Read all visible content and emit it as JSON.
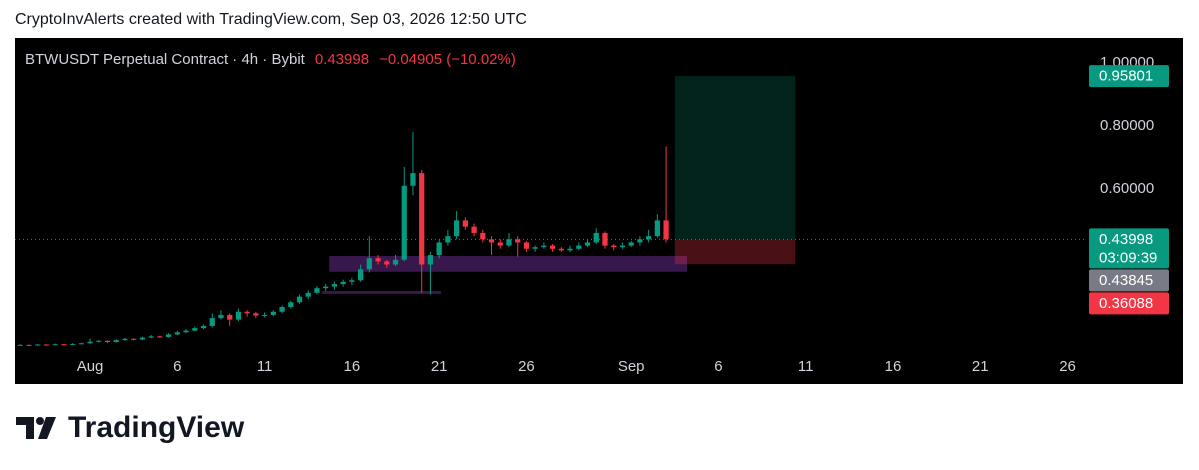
{
  "header": "CryptoInvAlerts created with TradingView.com, Sep 03, 2026 12:50 UTC",
  "brand": "TradingView",
  "chart_data": {
    "type": "candlestick",
    "title": "BTWUSDT Perpetual Contract · 4h · Bybit",
    "last_price": {
      "value": 0.43998,
      "label": "0.43998"
    },
    "change": "−0.04905 (−10.02%)",
    "countdown": "03:09:39",
    "up_color": "#089981",
    "down_color": "#f23645",
    "grid": false,
    "xlim": [
      -4.3,
      57
    ],
    "ylim": [
      0.095,
      1.079
    ],
    "xticks": [
      {
        "value": 0,
        "label": "Aug"
      },
      {
        "value": 5,
        "label": "6"
      },
      {
        "value": 10,
        "label": "11"
      },
      {
        "value": 15,
        "label": "16"
      },
      {
        "value": 20,
        "label": "21"
      },
      {
        "value": 25,
        "label": "26"
      },
      {
        "value": 31,
        "label": "Sep"
      },
      {
        "value": 36,
        "label": "6"
      },
      {
        "value": 41,
        "label": "11"
      },
      {
        "value": 46,
        "label": "16"
      },
      {
        "value": 51,
        "label": "21"
      },
      {
        "value": 56,
        "label": "26"
      }
    ],
    "yticks": [
      {
        "value": 1,
        "label": "1.00000"
      },
      {
        "value": 0.8,
        "label": "0.80000"
      },
      {
        "value": 0.6,
        "label": "0.60000"
      }
    ],
    "x": [
      -4,
      -3.5,
      -3,
      -2.5,
      -2,
      -1.5,
      -1,
      -0.5,
      0,
      0.5,
      1,
      1.5,
      2,
      2.5,
      3,
      3.5,
      4,
      4.5,
      5,
      5.5,
      6,
      6.5,
      7,
      7.5,
      8,
      8.5,
      9,
      9.5,
      10,
      10.5,
      11,
      11.5,
      12,
      12.5,
      13,
      13.5,
      14,
      14.5,
      15,
      15.5,
      16,
      16.5,
      17,
      17.5,
      18,
      18.5,
      19,
      19.5,
      20,
      20.5,
      21,
      21.5,
      22,
      22.5,
      23,
      23.5,
      24,
      24.5,
      25,
      25.5,
      26,
      26.5,
      27,
      27.5,
      28,
      28.5,
      29,
      29.5,
      30,
      30.5,
      31,
      31.5,
      32,
      32.5,
      33
    ],
    "open": [
      0.104,
      0.105,
      0.104,
      0.106,
      0.105,
      0.107,
      0.106,
      0.108,
      0.11,
      0.115,
      0.118,
      0.114,
      0.12,
      0.124,
      0.122,
      0.128,
      0.132,
      0.13,
      0.138,
      0.145,
      0.15,
      0.158,
      0.165,
      0.19,
      0.2,
      0.185,
      0.21,
      0.205,
      0.198,
      0.2,
      0.21,
      0.225,
      0.24,
      0.258,
      0.27,
      0.285,
      0.29,
      0.298,
      0.305,
      0.31,
      0.345,
      0.38,
      0.37,
      0.36,
      0.375,
      0.61,
      0.65,
      0.36,
      0.39,
      0.43,
      0.45,
      0.5,
      0.48,
      0.46,
      0.44,
      0.43,
      0.42,
      0.44,
      0.43,
      0.41,
      0.415,
      0.42,
      0.41,
      0.405,
      0.41,
      0.42,
      0.43,
      0.46,
      0.42,
      0.415,
      0.42,
      0.43,
      0.44,
      0.45,
      0.5
    ],
    "high": [
      0.107,
      0.106,
      0.108,
      0.107,
      0.109,
      0.108,
      0.11,
      0.112,
      0.125,
      0.12,
      0.119,
      0.123,
      0.128,
      0.126,
      0.131,
      0.136,
      0.134,
      0.142,
      0.15,
      0.155,
      0.163,
      0.17,
      0.205,
      0.215,
      0.205,
      0.22,
      0.215,
      0.21,
      0.208,
      0.215,
      0.23,
      0.245,
      0.265,
      0.278,
      0.292,
      0.298,
      0.305,
      0.312,
      0.318,
      0.36,
      0.45,
      0.39,
      0.375,
      0.39,
      0.67,
      0.78,
      0.66,
      0.4,
      0.44,
      0.47,
      0.53,
      0.51,
      0.49,
      0.47,
      0.45,
      0.44,
      0.46,
      0.45,
      0.435,
      0.42,
      0.43,
      0.425,
      0.415,
      0.42,
      0.43,
      0.44,
      0.475,
      0.465,
      0.425,
      0.43,
      0.435,
      0.45,
      0.47,
      0.52,
      0.735
    ],
    "low": [
      0.102,
      0.102,
      0.103,
      0.103,
      0.104,
      0.104,
      0.105,
      0.106,
      0.108,
      0.112,
      0.11,
      0.112,
      0.118,
      0.119,
      0.12,
      0.126,
      0.127,
      0.128,
      0.136,
      0.142,
      0.148,
      0.155,
      0.16,
      0.185,
      0.165,
      0.18,
      0.195,
      0.19,
      0.192,
      0.196,
      0.205,
      0.22,
      0.235,
      0.25,
      0.265,
      0.275,
      0.28,
      0.29,
      0.295,
      0.305,
      0.335,
      0.36,
      0.35,
      0.355,
      0.37,
      0.58,
      0.27,
      0.265,
      0.38,
      0.42,
      0.44,
      0.47,
      0.45,
      0.43,
      0.39,
      0.41,
      0.415,
      0.385,
      0.4,
      0.4,
      0.41,
      0.4,
      0.4,
      0.4,
      0.405,
      0.415,
      0.425,
      0.41,
      0.405,
      0.41,
      0.415,
      0.42,
      0.43,
      0.445,
      0.43
    ],
    "close": [
      0.105,
      0.104,
      0.106,
      0.105,
      0.107,
      0.106,
      0.108,
      0.11,
      0.115,
      0.118,
      0.114,
      0.12,
      0.124,
      0.122,
      0.128,
      0.132,
      0.13,
      0.138,
      0.145,
      0.15,
      0.158,
      0.165,
      0.19,
      0.2,
      0.185,
      0.21,
      0.205,
      0.198,
      0.2,
      0.21,
      0.225,
      0.24,
      0.258,
      0.27,
      0.285,
      0.29,
      0.298,
      0.305,
      0.31,
      0.345,
      0.38,
      0.37,
      0.36,
      0.375,
      0.61,
      0.65,
      0.36,
      0.39,
      0.43,
      0.45,
      0.5,
      0.48,
      0.46,
      0.44,
      0.43,
      0.42,
      0.44,
      0.43,
      0.41,
      0.415,
      0.42,
      0.41,
      0.405,
      0.41,
      0.42,
      0.43,
      0.46,
      0.42,
      0.415,
      0.42,
      0.43,
      0.44,
      0.45,
      0.5,
      0.44
    ],
    "position": {
      "xlim": [
        33.5,
        40.4
      ],
      "target": 0.95801,
      "entry": 0.43845,
      "stop": 0.36088,
      "target_color": "#089981",
      "entry_color": "#787b86",
      "stop_color": "#f23645"
    },
    "zones": [
      {
        "xlim": [
          13.7,
          34.2
        ],
        "ylim": [
          0.337,
          0.387
        ]
      },
      {
        "xlim": [
          13.3,
          20.1
        ],
        "ylim": [
          0.272,
          0.276
        ]
      }
    ],
    "zone_color": "#4a1f66"
  }
}
